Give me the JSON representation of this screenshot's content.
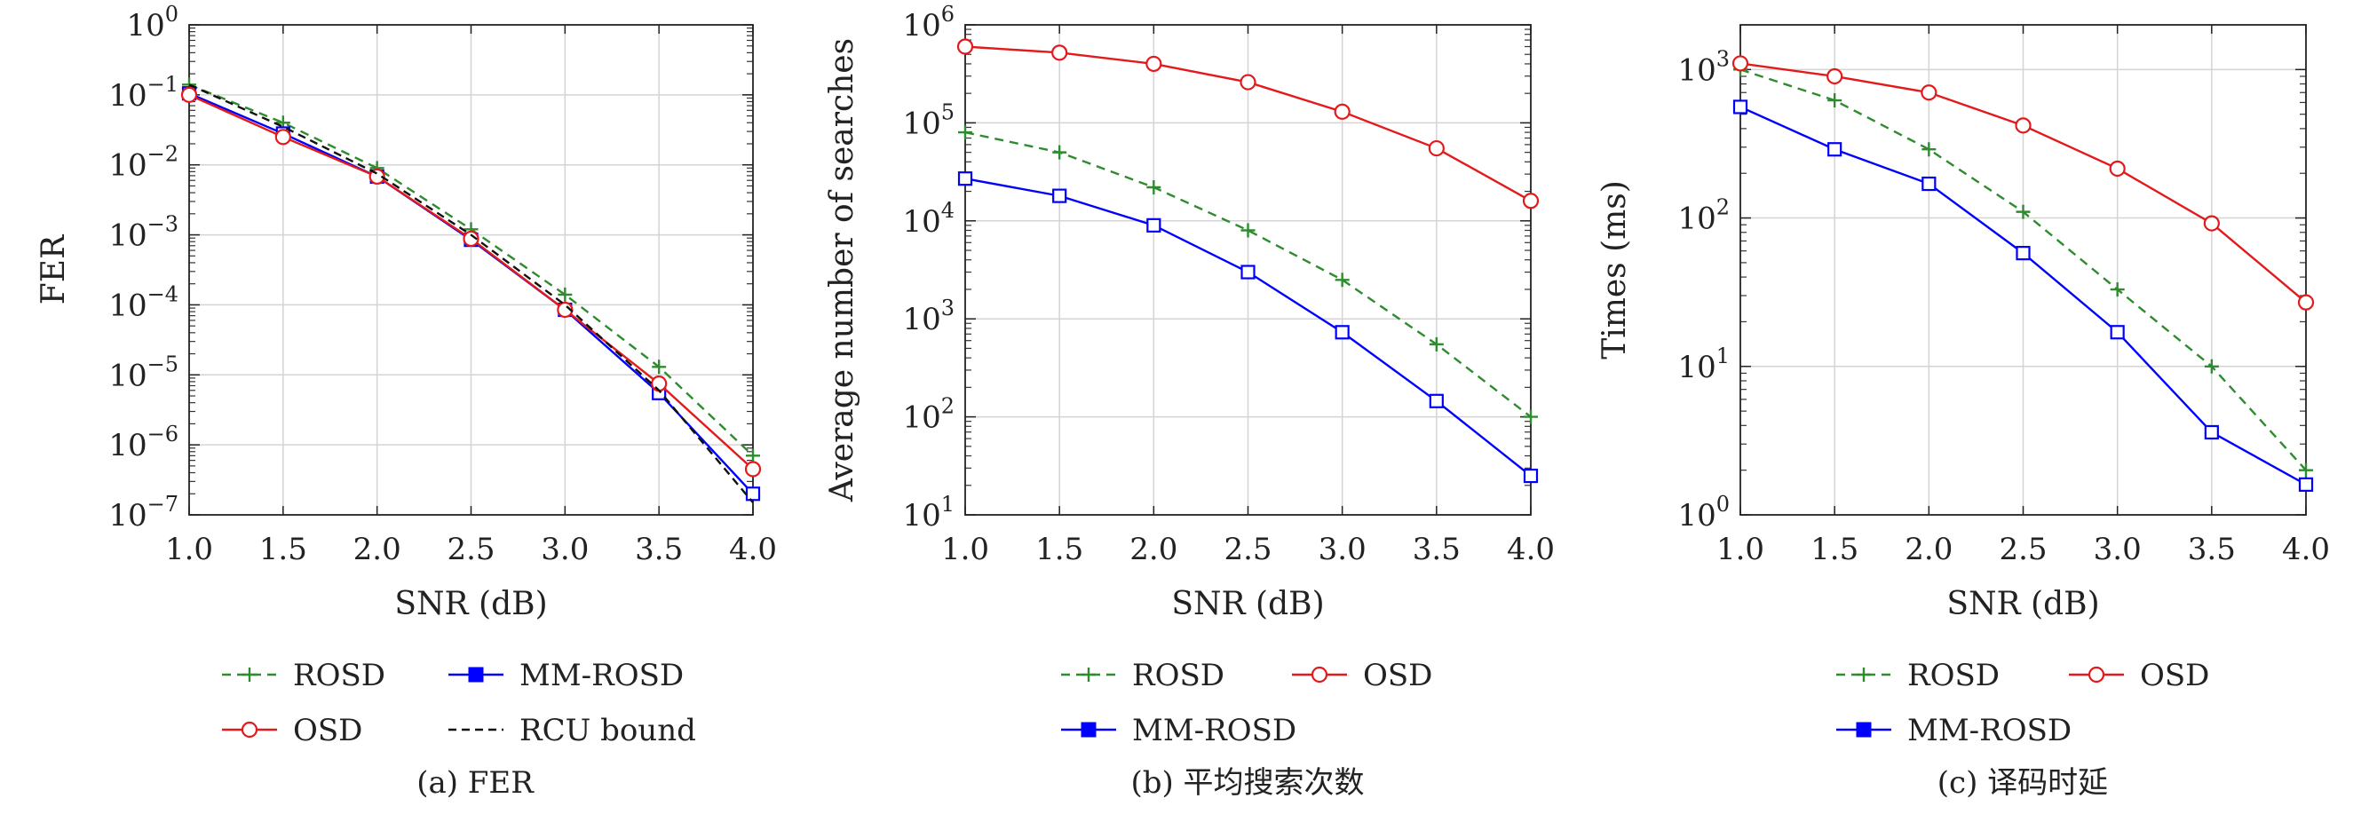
{
  "chart_data": [
    {
      "type": "line",
      "caption": "(a) FER",
      "xlabel": "SNR (dB)",
      "ylabel": "FER",
      "yscale": "log",
      "xlim": [
        1.0,
        4.0
      ],
      "ylim": [
        1e-07,
        1
      ],
      "x": [
        1.0,
        1.5,
        2.0,
        2.5,
        3.0,
        3.5,
        4.0
      ],
      "xtick_labels": [
        "1.0",
        "1.5",
        "2.0",
        "2.5",
        "3.0",
        "3.5",
        "4.0"
      ],
      "ytick_exponents": [
        "0",
        "-1",
        "-2",
        "-3",
        "-4",
        "-5",
        "-6",
        "-7"
      ],
      "grid": true,
      "legend_layout": "below",
      "series": [
        {
          "name": "ROSD",
          "color": "#2e8b2e",
          "style": "dashed",
          "marker": "plus",
          "values": [
            0.14,
            0.04,
            0.009,
            0.0012,
            0.00014,
            1.3e-05,
            7e-07
          ]
        },
        {
          "name": "MM-ROSD",
          "color": "#0000ff",
          "style": "solid",
          "marker": "square",
          "values": [
            0.105,
            0.028,
            0.0068,
            0.00085,
            8.5e-05,
            5.5e-06,
            2e-07
          ]
        },
        {
          "name": "OSD",
          "color": "#e31a1c",
          "style": "solid",
          "marker": "circle",
          "values": [
            0.1,
            0.025,
            0.0068,
            0.00088,
            8.5e-05,
            7.5e-06,
            4.5e-07
          ]
        },
        {
          "name": "RCU bound",
          "color": "#111111",
          "style": "dashed",
          "marker": "none",
          "values": [
            0.14,
            0.035,
            0.0075,
            0.001,
            0.0001,
            6e-06,
            1.5e-07
          ]
        }
      ]
    },
    {
      "type": "line",
      "caption": "(b) 平均搜索次数",
      "xlabel": "SNR (dB)",
      "ylabel": "Average number of searches",
      "yscale": "log",
      "xlim": [
        1.0,
        4.0
      ],
      "ylim": [
        10,
        1000000
      ],
      "x": [
        1.0,
        1.5,
        2.0,
        2.5,
        3.0,
        3.5,
        4.0
      ],
      "xtick_labels": [
        "1.0",
        "1.5",
        "2.0",
        "2.5",
        "3.0",
        "3.5",
        "4.0"
      ],
      "ytick_exponents": [
        "6",
        "5",
        "4",
        "3",
        "2",
        "1"
      ],
      "grid": true,
      "legend_layout": "below",
      "series": [
        {
          "name": "ROSD",
          "color": "#2e8b2e",
          "style": "dashed",
          "marker": "plus",
          "values": [
            80000,
            50000,
            22000,
            8000,
            2500,
            550,
            100
          ]
        },
        {
          "name": "OSD",
          "color": "#e31a1c",
          "style": "solid",
          "marker": "circle",
          "values": [
            600000,
            520000,
            400000,
            260000,
            130000,
            55000,
            16000
          ]
        },
        {
          "name": "MM-ROSD",
          "color": "#0000ff",
          "style": "solid",
          "marker": "square",
          "values": [
            27000,
            18000,
            9000,
            3000,
            730,
            145,
            25
          ]
        }
      ]
    },
    {
      "type": "line",
      "caption": "(c) 译码时延",
      "xlabel": "SNR (dB)",
      "ylabel": "Times (ms)",
      "yscale": "log",
      "xlim": [
        1.0,
        4.0
      ],
      "ylim": [
        1,
        2000
      ],
      "x": [
        1.0,
        1.5,
        2.0,
        2.5,
        3.0,
        3.5,
        4.0
      ],
      "xtick_labels": [
        "1.0",
        "1.5",
        "2.0",
        "2.5",
        "3.0",
        "3.5",
        "4.0"
      ],
      "ytick_exponents": [
        "3",
        "2",
        "1",
        "0"
      ],
      "grid": true,
      "legend_layout": "below",
      "series": [
        {
          "name": "ROSD",
          "color": "#2e8b2e",
          "style": "dashed",
          "marker": "plus",
          "values": [
            1000,
            620,
            290,
            110,
            33,
            10,
            2
          ]
        },
        {
          "name": "OSD",
          "color": "#e31a1c",
          "style": "solid",
          "marker": "circle",
          "values": [
            1100,
            900,
            700,
            420,
            215,
            92,
            27
          ]
        },
        {
          "name": "MM-ROSD",
          "color": "#0000ff",
          "style": "solid",
          "marker": "square",
          "values": [
            560,
            290,
            170,
            58,
            17,
            3.6,
            1.6
          ]
        }
      ]
    }
  ]
}
